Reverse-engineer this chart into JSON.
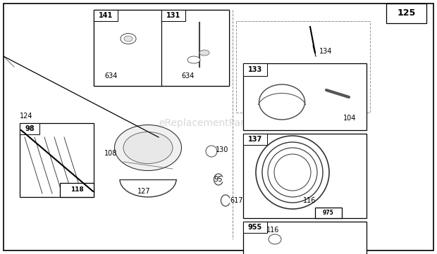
{
  "bg_color": "#ffffff",
  "watermark": "eReplacementParts.com",
  "watermark_color": "#c8c8c8"
}
